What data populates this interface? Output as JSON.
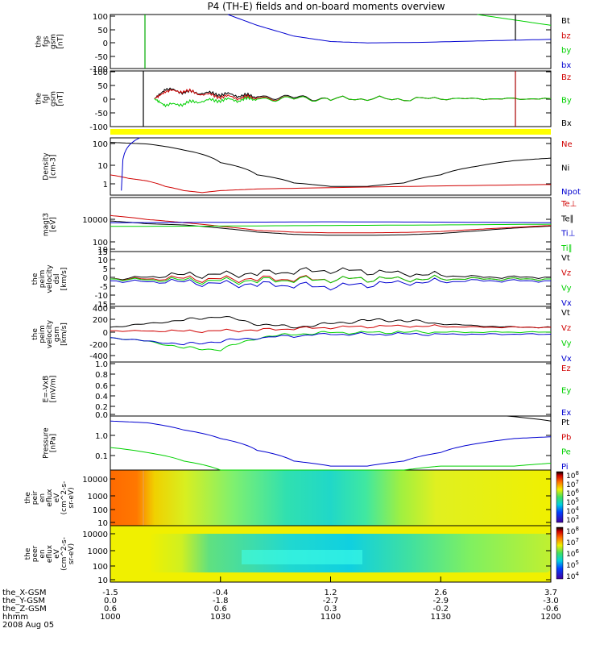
{
  "title": "P4 (TH-E) fields and on-board moments overview",
  "colors": {
    "black": "#000000",
    "red": "#d00000",
    "green": "#00d000",
    "blue": "#0000d0",
    "yellow": "#ffff00"
  },
  "panels": [
    {
      "id": "fgs",
      "ylabel": [
        "the",
        "fgs",
        "gsm",
        "[nT]"
      ],
      "ticks": [
        "100",
        "50",
        "0",
        "-50",
        "-100"
      ],
      "legend": [
        {
          "t": "Bt",
          "c": "black"
        },
        {
          "t": "bz",
          "c": "red"
        },
        {
          "t": "by",
          "c": "green"
        },
        {
          "t": "bx",
          "c": "blue"
        }
      ]
    },
    {
      "id": "fgl",
      "ylabel": [
        "the",
        "fgl",
        "gsm",
        "[nT]"
      ],
      "ticks": [
        "100",
        "50",
        "0",
        "-50",
        "-100"
      ],
      "legend": [
        {
          "t": "Bz",
          "c": "red"
        },
        {
          "t": "By",
          "c": "green"
        },
        {
          "t": "Bx",
          "c": "black"
        }
      ]
    },
    {
      "id": "density",
      "ylabel": [
        "Density",
        "[cm-3]"
      ],
      "ticks": [
        "100",
        "10",
        "1"
      ],
      "legend": [
        {
          "t": "Ne",
          "c": "red"
        },
        {
          "t": "Ni",
          "c": "black"
        },
        {
          "t": "Npot",
          "c": "blue"
        }
      ]
    },
    {
      "id": "temp",
      "ylabel": [
        "magt3",
        "[eV]"
      ],
      "ticks": [
        "10000",
        "100",
        "10"
      ],
      "legend": [
        {
          "t": "Te⊥",
          "c": "red"
        },
        {
          "t": "Te∥",
          "c": "black"
        },
        {
          "t": "Ti⊥",
          "c": "blue"
        },
        {
          "t": "Ti∥",
          "c": "green"
        }
      ]
    },
    {
      "id": "velocity_dsl",
      "ylabel": [
        "the",
        "peim",
        "velocity",
        "dsl",
        "[km/s]"
      ],
      "ticks": [
        "15",
        "10",
        "5",
        "0",
        "-5",
        "-10",
        "-15"
      ],
      "legend": [
        {
          "t": "Vt",
          "c": "black"
        },
        {
          "t": "Vz",
          "c": "red"
        },
        {
          "t": "Vy",
          "c": "green"
        },
        {
          "t": "Vx",
          "c": "blue"
        }
      ]
    },
    {
      "id": "velocity_gsm",
      "ylabel": [
        "the",
        "peim",
        "velocity",
        "gsm",
        "[km/s]"
      ],
      "ticks": [
        "400",
        "200",
        "0",
        "-200",
        "-400"
      ],
      "legend": [
        {
          "t": "Vt",
          "c": "black"
        },
        {
          "t": "Vz",
          "c": "red"
        },
        {
          "t": "Vy",
          "c": "green"
        },
        {
          "t": "Vx",
          "c": "blue"
        }
      ]
    },
    {
      "id": "efield",
      "ylabel": [
        "E=-VxB",
        "[mV/m]"
      ],
      "ticks": [
        "1.0",
        "0.8",
        "0.6",
        "0.4",
        "0.2",
        "0.0"
      ],
      "legend": [
        {
          "t": "Ez",
          "c": "red"
        },
        {
          "t": "Ey",
          "c": "green"
        },
        {
          "t": "Ex",
          "c": "blue"
        }
      ]
    },
    {
      "id": "pressure",
      "ylabel": [
        "Pressure",
        "[nPa]"
      ],
      "ticks": [
        "1.0",
        "0.1"
      ],
      "legend": [
        {
          "t": "Pt",
          "c": "black"
        },
        {
          "t": "Pb",
          "c": "red"
        },
        {
          "t": "Pe",
          "c": "green"
        },
        {
          "t": "Pi",
          "c": "blue"
        }
      ]
    },
    {
      "id": "peir",
      "ylabel": [
        "the",
        "peir",
        "en",
        "eflux",
        "eV",
        "(cm^2-s-",
        "sr-eV)"
      ],
      "ticks": [
        "10000",
        "1000",
        "100",
        "10"
      ],
      "colorbar": [
        "10^8",
        "10^7",
        "10^6",
        "10^5",
        "10^4",
        "10^3"
      ]
    },
    {
      "id": "peer",
      "ylabel": [
        "the",
        "peer",
        "en",
        "eflux",
        "eV",
        "(cm^2-s-",
        "sr-eV)"
      ],
      "ticks": [
        "10000",
        "1000",
        "100",
        "10"
      ],
      "colorbar": [
        "10^8",
        "10^7",
        "10^6",
        "10^5",
        "10^4"
      ]
    }
  ],
  "footer": {
    "row_labels": [
      "the_X-GSM",
      "the_Y-GSM",
      "the_Z-GSM",
      "hhmm",
      "2008 Aug 05"
    ],
    "columns": [
      {
        "x": "-1.5",
        "y": "0.0",
        "z": "0.6",
        "hhmm": "1000"
      },
      {
        "x": "-0.4",
        "y": "-1.8",
        "z": "0.6",
        "hhmm": "1030"
      },
      {
        "x": "1.2",
        "y": "-2.7",
        "z": "0.3",
        "hhmm": "1100"
      },
      {
        "x": "2.6",
        "y": "-2.9",
        "z": "-0.2",
        "hhmm": "1130"
      },
      {
        "x": "3.7",
        "y": "-3.0",
        "z": "-0.6",
        "hhmm": "1200"
      }
    ]
  },
  "chart_data": {
    "type": "line",
    "title": "P4 (TH-E) fields and on-board moments overview",
    "x_time_hhmm": [
      "1000",
      "1030",
      "1100",
      "1130",
      "1200"
    ],
    "x_tick_values": [
      0,
      30,
      60,
      90,
      120
    ],
    "panels": [
      {
        "id": "fgs",
        "ylim": [
          -100,
          100
        ],
        "series": [
          {
            "name": "bx",
            "color": "blue",
            "x": [
              32,
              40,
              50,
              60,
              70,
              85,
              100,
              120
            ],
            "values": [
              100,
              60,
              20,
              0,
              -5,
              -3,
              2,
              8
            ]
          },
          {
            "name": "by",
            "color": "green",
            "x": [
              100,
              110,
              120
            ],
            "values": [
              100,
              80,
              60
            ]
          }
        ]
      },
      {
        "id": "fgl",
        "ylim": [
          -120,
          120
        ],
        "series": [
          {
            "name": "Bx",
            "color": "black",
            "x": [
              12,
              15,
              20,
              25,
              30,
              35,
              40,
              50,
              60,
              80,
              100,
              120
            ],
            "values": [
              0,
              40,
              30,
              25,
              20,
              15,
              10,
              5,
              0,
              0,
              0,
              0
            ]
          },
          {
            "name": "Bz",
            "color": "red",
            "x": [
              12,
              15,
              20,
              25,
              30,
              35,
              40,
              50,
              60,
              80,
              100,
              120
            ],
            "values": [
              0,
              30,
              35,
              20,
              10,
              5,
              5,
              0,
              0,
              0,
              0,
              0
            ]
          },
          {
            "name": "By",
            "color": "green",
            "x": [
              12,
              15,
              20,
              25,
              30,
              35,
              40,
              50,
              60,
              80,
              100,
              120
            ],
            "values": [
              0,
              -30,
              -20,
              -10,
              -5,
              -5,
              0,
              0,
              0,
              0,
              0,
              0
            ]
          }
        ]
      },
      {
        "id": "density",
        "ylim": [
          0.3,
          200
        ],
        "log": true,
        "series": [
          {
            "name": "Ni",
            "color": "black",
            "x": [
              0,
              10,
              20,
              30,
              40,
              50,
              60,
              70,
              80,
              90,
              100,
              110,
              120
            ],
            "values": [
              120,
              100,
              50,
              12,
              3,
              1.2,
              0.8,
              0.8,
              1.2,
              3,
              8,
              15,
              20
            ]
          },
          {
            "name": "Ne",
            "color": "red",
            "x": [
              0,
              5,
              10,
              15,
              20,
              25,
              30,
              40,
              60,
              80,
              100,
              120
            ],
            "values": [
              3,
              2,
              1.5,
              0.8,
              0.5,
              0.4,
              0.5,
              0.6,
              0.7,
              0.8,
              0.9,
              1
            ]
          },
          {
            "name": "Npot",
            "color": "blue",
            "x": [
              3,
              8
            ],
            "values": [
              0.5,
              200
            ]
          }
        ]
      },
      {
        "id": "temp",
        "ylim": [
          10,
          10000
        ],
        "log": true,
        "series": [
          {
            "name": "Te∥",
            "color": "black",
            "x": [
              0,
              10,
              20,
              30,
              40,
              50,
              60,
              70,
              80,
              90,
              100,
              110,
              120
            ],
            "values": [
              500,
              350,
              300,
              200,
              120,
              90,
              80,
              80,
              85,
              100,
              140,
              200,
              260
            ]
          },
          {
            "name": "Te⊥",
            "color": "red",
            "x": [
              0,
              10,
              20,
              30,
              40,
              50,
              60,
              70,
              80,
              90,
              100,
              110,
              120
            ],
            "values": [
              1000,
              600,
              400,
              250,
              150,
              120,
              110,
              110,
              115,
              130,
              170,
              220,
              280
            ]
          },
          {
            "name": "Ti⊥",
            "color": "blue",
            "x": [
              0,
              30,
              60,
              90,
              120
            ],
            "values": [
              400,
              420,
              450,
              430,
              400
            ]
          },
          {
            "name": "Ti∥",
            "color": "green",
            "x": [
              0,
              30,
              60,
              90,
              120
            ],
            "values": [
              250,
              260,
              280,
              300,
              330
            ]
          }
        ]
      },
      {
        "id": "velocity_dsl",
        "ylim": [
          -15,
          15
        ],
        "series": [
          {
            "name": "Vt",
            "color": "black",
            "x": [
              0,
              20,
              40,
              60,
              80,
              100,
              120
            ],
            "values": [
              0,
              2,
              3,
              5,
              3,
              1,
              1
            ]
          },
          {
            "name": "Vz",
            "color": "red",
            "x": [
              0,
              20,
              40,
              60,
              80,
              100,
              120
            ],
            "values": [
              0,
              0,
              0,
              0,
              0,
              0,
              0
            ]
          },
          {
            "name": "Vy",
            "color": "green",
            "x": [
              0,
              20,
              40,
              60,
              80,
              100,
              120
            ],
            "values": [
              0,
              -1,
              -1,
              0,
              0,
              0,
              0
            ]
          },
          {
            "name": "Vx",
            "color": "blue",
            "x": [
              0,
              20,
              40,
              60,
              80,
              100,
              120
            ],
            "values": [
              -1,
              -2,
              -3,
              -4,
              -2,
              -1,
              -1
            ]
          }
        ]
      },
      {
        "id": "velocity_gsm",
        "ylim": [
          -400,
          400
        ],
        "series": [
          {
            "name": "Vt",
            "color": "black",
            "x": [
              0,
              10,
              20,
              30,
              40,
              50,
              60,
              70,
              80,
              90,
              100,
              110,
              120
            ],
            "values": [
              100,
              150,
              200,
              260,
              150,
              100,
              150,
              200,
              200,
              150,
              120,
              100,
              100
            ]
          },
          {
            "name": "Vz",
            "color": "red",
            "x": [
              0,
              20,
              40,
              60,
              80,
              100,
              120
            ],
            "values": [
              50,
              40,
              60,
              100,
              120,
              100,
              100
            ]
          },
          {
            "name": "Vy",
            "color": "green",
            "x": [
              0,
              10,
              20,
              30,
              40,
              50,
              60,
              80,
              100,
              120
            ],
            "values": [
              -50,
              -100,
              -200,
              -220,
              -50,
              0,
              20,
              30,
              30,
              30
            ]
          },
          {
            "name": "Vx",
            "color": "blue",
            "x": [
              0,
              10,
              20,
              30,
              40,
              60,
              80,
              100,
              120
            ],
            "values": [
              -50,
              -100,
              -150,
              -100,
              -50,
              0,
              0,
              0,
              0
            ]
          }
        ]
      },
      {
        "id": "efield",
        "ylim": [
          0,
          1
        ],
        "series": []
      },
      {
        "id": "pressure",
        "ylim": [
          0.02,
          5
        ],
        "log": true,
        "series": [
          {
            "name": "Pi",
            "color": "blue",
            "x": [
              0,
              10,
              20,
              30,
              40,
              50,
              60,
              70,
              80,
              90,
              100,
              110,
              120
            ],
            "values": [
              3,
              2.5,
              1.2,
              0.5,
              0.15,
              0.05,
              0.03,
              0.03,
              0.05,
              0.12,
              0.3,
              0.5,
              0.6
            ]
          },
          {
            "name": "Pe",
            "color": "green",
            "x": [
              0,
              10,
              20,
              30,
              40,
              50,
              60,
              70,
              80,
              90,
              100,
              110,
              120
            ],
            "values": [
              0.2,
              0.12,
              0.05,
              0.02,
              0.02,
              0.02,
              0.02,
              0.02,
              0.02,
              0.03,
              0.03,
              0.03,
              0.04
            ]
          },
          {
            "name": "Pt",
            "color": "black",
            "x": [
              108,
              120
            ],
            "values": [
              5,
              3
            ]
          }
        ]
      },
      {
        "id": "peir",
        "type": "heatmap",
        "ylim": [
          10,
          20000
        ],
        "log": true
      },
      {
        "id": "peer",
        "type": "heatmap",
        "ylim": [
          5,
          20000
        ],
        "log": true
      }
    ],
    "footer": {
      "the_X-GSM": [
        -1.5,
        -0.4,
        1.2,
        2.6,
        3.7
      ],
      "the_Y-GSM": [
        0.0,
        -1.8,
        -2.7,
        -2.9,
        -3.0
      ],
      "the_Z-GSM": [
        0.6,
        0.6,
        0.3,
        -0.2,
        -0.6
      ],
      "date": "2008 Aug 05"
    }
  }
}
